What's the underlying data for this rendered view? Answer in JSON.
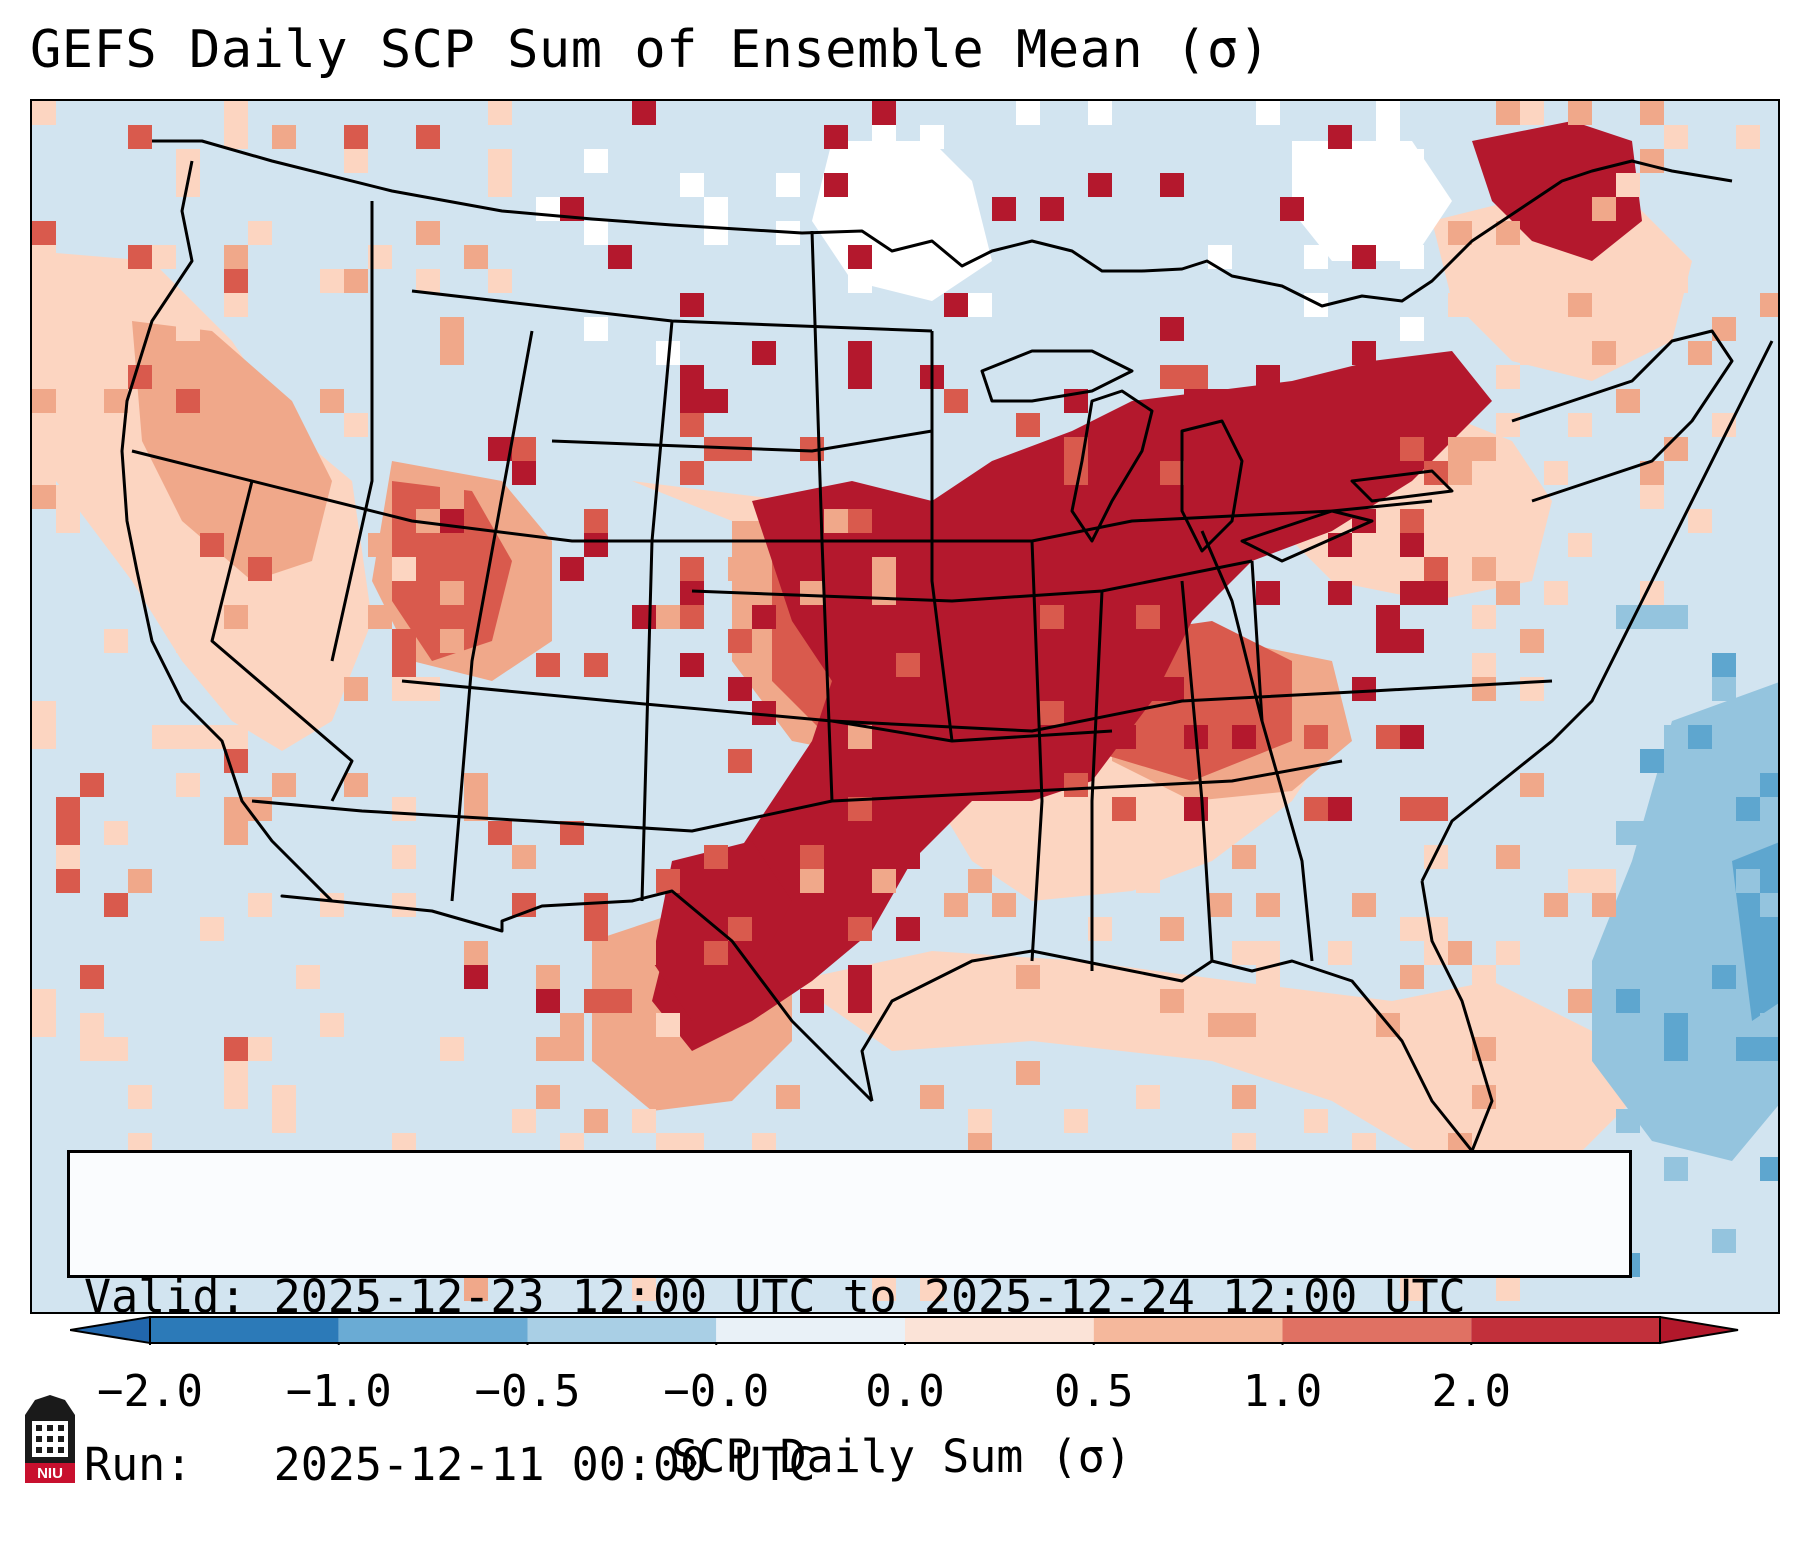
{
  "title": "GEFS Daily SCP Sum of Ensemble Mean (σ)",
  "info": {
    "valid_label": "Valid:",
    "valid_value": "2025-12-23 12:00 UTC to 2025-12-24 12:00 UTC",
    "run_label": "Run:",
    "run_value": "2025-12-11 00:00 UTC"
  },
  "colorbar": {
    "label": "SCP Daily Sum (σ)",
    "ticks": [
      "−2.0",
      "−1.0",
      "−0.5",
      "−0.0",
      "0.0",
      "0.5",
      "1.0",
      "2.0"
    ],
    "bins": [
      {
        "color": "#2c7ab8"
      },
      {
        "color": "#6aabd4"
      },
      {
        "color": "#a9cfe5"
      },
      {
        "color": "#e9f1f7"
      },
      {
        "color": "#fbe3d7"
      },
      {
        "color": "#f5b89c"
      },
      {
        "color": "#e07163"
      },
      {
        "color": "#c2303b"
      }
    ],
    "extend_low_color": "#2166ac",
    "extend_high_color": "#b2182b"
  },
  "colors": {
    "ocean_base": "#d2e4f0",
    "near_zero_blue": "#ffffff",
    "light_red": "#fcd5c1",
    "mid_red": "#f0a88a",
    "red": "#d95a4d",
    "dark_red": "#b4182d",
    "mid_blue": "#94c4de",
    "dark_blue": "#5ea6cf"
  },
  "logo": {
    "text": "NIU"
  }
}
